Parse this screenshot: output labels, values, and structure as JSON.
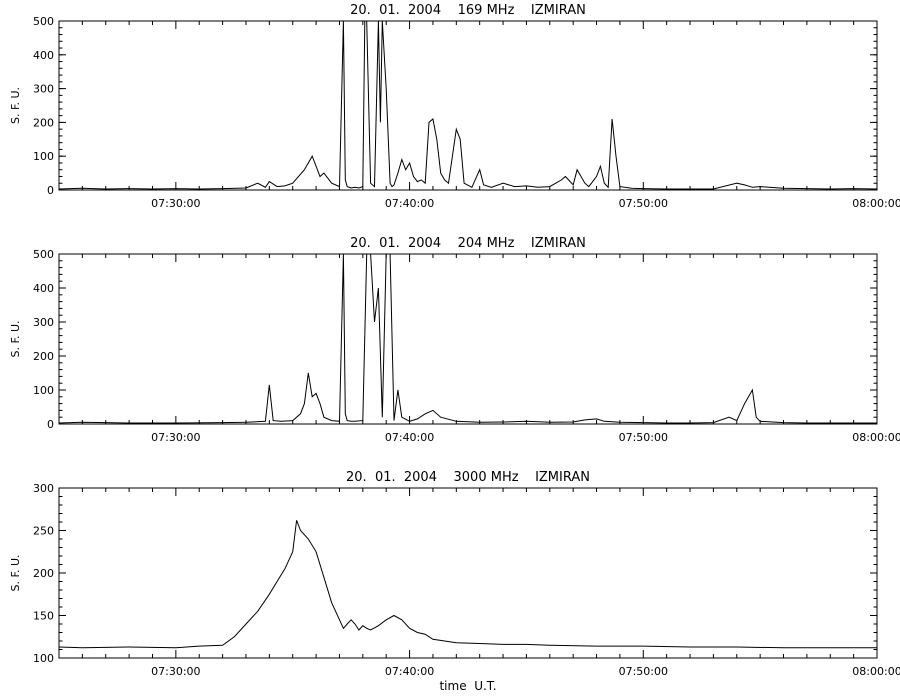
{
  "chart_data": [
    {
      "type": "line",
      "title": "20.  01.  2004    169 MHz    IZMIRAN",
      "ylabel": "S. F. U.",
      "xlabel": "",
      "x_range": [
        "07:25:00",
        "08:00:00"
      ],
      "x_ticks": [
        "07:30:00",
        "07:40:00",
        "07:50:00",
        "08:00:00"
      ],
      "ylim": [
        0,
        500
      ],
      "y_ticks": [
        0,
        100,
        200,
        300,
        400,
        500
      ],
      "grid": false,
      "series": [
        {
          "x": [
            "07:25:00",
            "07:26:00",
            "07:27:00",
            "07:28:00",
            "07:29:00",
            "07:30:00",
            "07:31:00",
            "07:32:00",
            "07:33:00",
            "07:33:30",
            "07:33:50",
            "07:34:00",
            "07:34:20",
            "07:34:40",
            "07:35:00",
            "07:35:30",
            "07:35:50",
            "07:36:00",
            "07:36:10",
            "07:36:20",
            "07:36:40",
            "07:37:00",
            "07:37:10",
            "07:37:15",
            "07:37:20",
            "07:37:30",
            "07:37:40",
            "07:37:50",
            "07:38:00",
            "07:38:05",
            "07:38:10",
            "07:38:20",
            "07:38:30",
            "07:38:40",
            "07:38:45",
            "07:38:50",
            "07:39:00",
            "07:39:10",
            "07:39:15",
            "07:39:20",
            "07:39:30",
            "07:39:40",
            "07:39:50",
            "07:40:00",
            "07:40:10",
            "07:40:20",
            "07:40:30",
            "07:40:40",
            "07:40:50",
            "07:41:00",
            "07:41:10",
            "07:41:20",
            "07:41:30",
            "07:41:40",
            "07:42:00",
            "07:42:10",
            "07:42:20",
            "07:42:40",
            "07:43:00",
            "07:43:10",
            "07:43:30",
            "07:44:00",
            "07:44:30",
            "07:45:00",
            "07:45:30",
            "07:46:00",
            "07:46:30",
            "07:46:40",
            "07:47:00",
            "07:47:10",
            "07:47:30",
            "07:47:40",
            "07:48:00",
            "07:48:10",
            "07:48:20",
            "07:48:30",
            "07:48:40",
            "07:48:50",
            "07:49:00",
            "07:49:30",
            "07:50:00",
            "07:51:00",
            "07:52:00",
            "07:53:00",
            "07:54:00",
            "07:54:20",
            "07:54:40",
            "07:55:00",
            "07:56:00",
            "07:57:00",
            "07:58:00",
            "07:59:00",
            "08:00:00"
          ],
          "y": [
            3,
            5,
            3,
            4,
            3,
            4,
            3,
            4,
            6,
            20,
            8,
            25,
            10,
            12,
            20,
            60,
            100,
            70,
            40,
            50,
            20,
            10,
            500,
            30,
            10,
            6,
            8,
            6,
            10,
            500,
            500,
            20,
            10,
            500,
            200,
            500,
            300,
            20,
            10,
            15,
            50,
            90,
            60,
            80,
            40,
            25,
            30,
            20,
            200,
            210,
            150,
            50,
            30,
            20,
            180,
            150,
            20,
            8,
            60,
            15,
            8,
            20,
            10,
            12,
            8,
            10,
            30,
            40,
            15,
            60,
            20,
            10,
            40,
            70,
            20,
            8,
            210,
            100,
            10,
            5,
            4,
            3,
            3,
            3,
            20,
            15,
            8,
            10,
            5,
            4,
            3,
            4,
            3
          ]
        }
      ]
    },
    {
      "type": "line",
      "title": "20.  01.  2004    204 MHz    IZMIRAN",
      "ylabel": "S. F. U.",
      "xlabel": "",
      "x_range": [
        "07:25:00",
        "08:00:00"
      ],
      "x_ticks": [
        "07:30:00",
        "07:40:00",
        "07:50:00",
        "08:00:00"
      ],
      "ylim": [
        0,
        500
      ],
      "y_ticks": [
        0,
        100,
        200,
        300,
        400,
        500
      ],
      "grid": false,
      "series": [
        {
          "x": [
            "07:25:00",
            "07:26:00",
            "07:28:00",
            "07:30:00",
            "07:32:00",
            "07:33:00",
            "07:33:50",
            "07:34:00",
            "07:34:10",
            "07:34:30",
            "07:35:00",
            "07:35:20",
            "07:35:30",
            "07:35:40",
            "07:35:50",
            "07:36:00",
            "07:36:10",
            "07:36:20",
            "07:36:40",
            "07:37:00",
            "07:37:10",
            "07:37:15",
            "07:37:20",
            "07:37:30",
            "07:37:40",
            "07:38:00",
            "07:38:10",
            "07:38:20",
            "07:38:30",
            "07:38:40",
            "07:38:50",
            "07:39:00",
            "07:39:10",
            "07:39:20",
            "07:39:30",
            "07:39:40",
            "07:40:00",
            "07:40:20",
            "07:40:40",
            "07:41:00",
            "07:41:20",
            "07:42:00",
            "07:43:00",
            "07:44:00",
            "07:45:00",
            "07:46:00",
            "07:47:00",
            "07:47:30",
            "07:48:00",
            "07:48:20",
            "07:49:00",
            "07:50:00",
            "07:51:00",
            "07:52:00",
            "07:53:00",
            "07:53:40",
            "07:54:00",
            "07:54:20",
            "07:54:30",
            "07:54:40",
            "07:54:50",
            "07:55:00",
            "07:56:00",
            "07:57:00",
            "07:58:00",
            "07:59:00",
            "08:00:00"
          ],
          "y": [
            3,
            5,
            3,
            3,
            4,
            5,
            8,
            115,
            10,
            8,
            10,
            30,
            60,
            150,
            80,
            90,
            60,
            20,
            10,
            8,
            500,
            30,
            10,
            8,
            8,
            10,
            500,
            500,
            300,
            400,
            20,
            500,
            500,
            10,
            100,
            20,
            8,
            15,
            30,
            40,
            20,
            8,
            5,
            6,
            8,
            5,
            6,
            12,
            15,
            8,
            5,
            4,
            3,
            3,
            4,
            20,
            10,
            60,
            80,
            100,
            20,
            8,
            4,
            3,
            3,
            3,
            3
          ]
        }
      ]
    },
    {
      "type": "line",
      "title": "20.  01.  2004    3000 MHz    IZMIRAN",
      "ylabel": "S. F. U.",
      "xlabel": "time  U.T.",
      "x_range": [
        "07:25:00",
        "08:00:00"
      ],
      "x_ticks": [
        "07:30:00",
        "07:40:00",
        "07:50:00",
        "08:00:00"
      ],
      "ylim": [
        100,
        300
      ],
      "y_ticks": [
        100,
        150,
        200,
        250,
        300
      ],
      "grid": false,
      "series": [
        {
          "x": [
            "07:25:00",
            "07:26:00",
            "07:28:00",
            "07:30:00",
            "07:31:00",
            "07:32:00",
            "07:32:30",
            "07:33:00",
            "07:33:30",
            "07:34:00",
            "07:34:20",
            "07:34:40",
            "07:34:50",
            "07:35:00",
            "07:35:10",
            "07:35:20",
            "07:35:40",
            "07:36:00",
            "07:36:20",
            "07:36:40",
            "07:37:00",
            "07:37:10",
            "07:37:20",
            "07:37:30",
            "07:37:40",
            "07:37:50",
            "07:38:00",
            "07:38:10",
            "07:38:20",
            "07:38:40",
            "07:39:00",
            "07:39:20",
            "07:39:40",
            "07:40:00",
            "07:40:20",
            "07:40:40",
            "07:41:00",
            "07:41:30",
            "07:42:00",
            "07:43:00",
            "07:44:00",
            "07:45:00",
            "07:46:00",
            "07:48:00",
            "07:50:00",
            "07:52:00",
            "07:54:00",
            "07:56:00",
            "07:58:00",
            "08:00:00"
          ],
          "y": [
            113,
            112,
            113,
            112,
            114,
            115,
            125,
            140,
            155,
            175,
            190,
            205,
            215,
            225,
            262,
            250,
            240,
            225,
            195,
            165,
            145,
            135,
            140,
            145,
            140,
            133,
            138,
            135,
            133,
            138,
            145,
            150,
            145,
            135,
            130,
            128,
            122,
            120,
            118,
            117,
            116,
            116,
            115,
            114,
            114,
            113,
            113,
            112,
            112,
            112
          ]
        }
      ]
    }
  ]
}
